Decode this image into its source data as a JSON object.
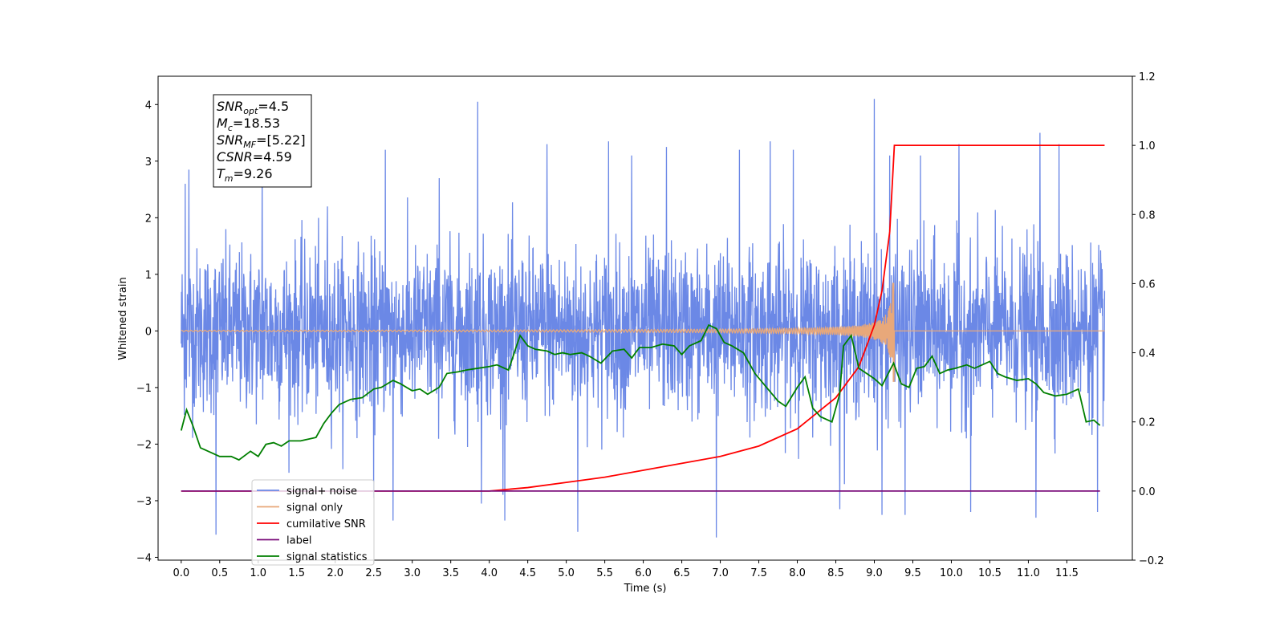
{
  "chart_data": {
    "type": "line",
    "xlabel": "Time (s)",
    "ylabel": "Whitened strain",
    "xlim": [
      -0.3,
      12.35
    ],
    "ylim": [
      -4.05,
      4.5
    ],
    "y2lim": [
      -0.2,
      1.2
    ],
    "x_ticks": [
      0.0,
      0.5,
      1.0,
      1.5,
      2.0,
      2.5,
      3.0,
      3.5,
      4.0,
      4.5,
      5.0,
      5.5,
      6.0,
      6.5,
      7.0,
      7.5,
      8.0,
      8.5,
      9.0,
      9.5,
      10.0,
      10.5,
      11.0,
      11.5
    ],
    "x_tick_labels": [
      "0.0",
      "0.5",
      "1.0",
      "1.5",
      "2.0",
      "2.5",
      "3.0",
      "3.5",
      "4.0",
      "4.5",
      "5.0",
      "5.5",
      "6.0",
      "6.5",
      "7.0",
      "7.5",
      "8.0",
      "8.5",
      "9.0",
      "9.5",
      "10.0",
      "10.5",
      "11.0",
      "11.5"
    ],
    "y_ticks": [
      -4,
      -3,
      -2,
      -1,
      0,
      1,
      2,
      3,
      4
    ],
    "y_tick_labels": [
      "−4",
      "−3",
      "−2",
      "−1",
      "0",
      "1",
      "2",
      "3",
      "4"
    ],
    "y2_ticks": [
      -0.2,
      0.0,
      0.2,
      0.4,
      0.6,
      0.8,
      1.0,
      1.2
    ],
    "y2_tick_labels": [
      "−0.2",
      "0.0",
      "0.2",
      "0.4",
      "0.6",
      "0.8",
      "1.0",
      "1.2"
    ],
    "grid": false,
    "legend_position": "bottom-left",
    "annotation": [
      {
        "main": "SNR",
        "sub": "opt",
        "rest": "=4.5"
      },
      {
        "main": "M",
        "sub": "c",
        "rest": "=18.53"
      },
      {
        "main": "SNR",
        "sub": "MF",
        "rest": "=[5.22]"
      },
      {
        "main": "CSNR",
        "sub": "",
        "rest": "=4.59"
      },
      {
        "main": "T",
        "sub": "m",
        "rest": "=9.26"
      }
    ],
    "series": [
      {
        "name": "signal+ noise",
        "color": "#6b88e6",
        "axis": "left",
        "envelope": {
          "x": [
            0.0,
            11.99
          ],
          "typical_range": [
            -2.0,
            2.0
          ],
          "max_peak": {
            "x": 9.0,
            "y": 4.1
          },
          "min_peak": {
            "x": 6.95,
            "y": -3.65
          }
        },
        "spikes": [
          {
            "x": 0.05,
            "y": 2.6
          },
          {
            "x": 0.1,
            "y": 2.85
          },
          {
            "x": 0.45,
            "y": -3.6
          },
          {
            "x": 1.05,
            "y": 2.9
          },
          {
            "x": 1.9,
            "y": 2.2
          },
          {
            "x": 2.5,
            "y": -2.95
          },
          {
            "x": 2.65,
            "y": 3.2
          },
          {
            "x": 2.75,
            "y": -3.35
          },
          {
            "x": 3.35,
            "y": 2.7
          },
          {
            "x": 3.85,
            "y": 4.05
          },
          {
            "x": 3.9,
            "y": -3.05
          },
          {
            "x": 4.2,
            "y": -3.35
          },
          {
            "x": 4.75,
            "y": 3.3
          },
          {
            "x": 5.15,
            "y": -3.55
          },
          {
            "x": 5.55,
            "y": 3.35
          },
          {
            "x": 5.85,
            "y": 3.1
          },
          {
            "x": 6.3,
            "y": 3.25
          },
          {
            "x": 6.95,
            "y": -3.65
          },
          {
            "x": 7.25,
            "y": 3.2
          },
          {
            "x": 7.65,
            "y": 3.35
          },
          {
            "x": 7.95,
            "y": 3.2
          },
          {
            "x": 8.55,
            "y": -3.15
          },
          {
            "x": 9.0,
            "y": 4.1
          },
          {
            "x": 9.1,
            "y": -3.25
          },
          {
            "x": 9.2,
            "y": 3.1
          },
          {
            "x": 9.4,
            "y": -3.25
          },
          {
            "x": 9.6,
            "y": 3.1
          },
          {
            "x": 10.1,
            "y": 3.3
          },
          {
            "x": 10.25,
            "y": -3.2
          },
          {
            "x": 11.1,
            "y": -3.3
          },
          {
            "x": 11.15,
            "y": 3.5
          },
          {
            "x": 11.4,
            "y": 3.3
          },
          {
            "x": 11.9,
            "y": -3.2
          }
        ]
      },
      {
        "name": "signal only",
        "color": "#e8a87a",
        "axis": "left",
        "chirp": {
          "t_start": 0.0,
          "t_merger": 9.26,
          "peak_amplitude": 0.85,
          "min_amplitude": -0.9,
          "end": 11.99
        }
      },
      {
        "name": "cumilative SNR",
        "color": "#ff0000",
        "axis": "right",
        "x": [
          0.0,
          4.0,
          4.5,
          5.0,
          5.5,
          6.0,
          6.5,
          7.0,
          7.5,
          8.0,
          8.5,
          8.8,
          9.0,
          9.1,
          9.2,
          9.26,
          9.27,
          11.99
        ],
        "values": [
          0.0,
          0.0,
          0.01,
          0.025,
          0.04,
          0.06,
          0.08,
          0.1,
          0.13,
          0.18,
          0.27,
          0.36,
          0.48,
          0.58,
          0.75,
          1.0,
          1.0,
          1.0
        ]
      },
      {
        "name": "label",
        "color": "#7b0f7b",
        "axis": "right",
        "x": [
          0.0,
          11.93
        ],
        "values": [
          0.0,
          0.0
        ]
      },
      {
        "name": "signal statistics",
        "color": "#007f00",
        "axis": "right",
        "x": [
          0.0,
          0.07,
          0.15,
          0.25,
          0.35,
          0.5,
          0.65,
          0.75,
          0.9,
          1.0,
          1.1,
          1.2,
          1.3,
          1.4,
          1.55,
          1.65,
          1.75,
          1.85,
          1.95,
          2.05,
          2.2,
          2.35,
          2.5,
          2.6,
          2.75,
          2.85,
          3.0,
          3.1,
          3.2,
          3.35,
          3.45,
          3.6,
          3.7,
          3.85,
          4.0,
          4.1,
          4.25,
          4.4,
          4.5,
          4.6,
          4.75,
          4.85,
          4.95,
          5.05,
          5.2,
          5.3,
          5.45,
          5.6,
          5.75,
          5.85,
          5.95,
          6.1,
          6.25,
          6.4,
          6.5,
          6.6,
          6.75,
          6.85,
          6.95,
          7.05,
          7.15,
          7.3,
          7.45,
          7.6,
          7.75,
          7.85,
          8.0,
          8.1,
          8.2,
          8.3,
          8.45,
          8.55,
          8.6,
          8.7,
          8.8,
          8.9,
          9.0,
          9.1,
          9.25,
          9.35,
          9.45,
          9.55,
          9.65,
          9.75,
          9.85,
          9.95,
          10.05,
          10.2,
          10.3,
          10.4,
          10.5,
          10.6,
          10.7,
          10.85,
          11.0,
          11.1,
          11.2,
          11.35,
          11.5,
          11.65,
          11.75,
          11.85,
          11.93
        ],
        "values": [
          0.175,
          0.235,
          0.19,
          0.125,
          0.115,
          0.1,
          0.1,
          0.09,
          0.115,
          0.1,
          0.135,
          0.14,
          0.13,
          0.145,
          0.145,
          0.15,
          0.155,
          0.195,
          0.225,
          0.25,
          0.265,
          0.27,
          0.295,
          0.3,
          0.32,
          0.31,
          0.29,
          0.295,
          0.28,
          0.3,
          0.34,
          0.345,
          0.35,
          0.355,
          0.36,
          0.365,
          0.35,
          0.45,
          0.42,
          0.41,
          0.405,
          0.395,
          0.4,
          0.395,
          0.4,
          0.39,
          0.37,
          0.405,
          0.41,
          0.385,
          0.415,
          0.415,
          0.425,
          0.42,
          0.395,
          0.42,
          0.435,
          0.48,
          0.47,
          0.43,
          0.42,
          0.4,
          0.34,
          0.3,
          0.26,
          0.245,
          0.3,
          0.33,
          0.24,
          0.215,
          0.2,
          0.28,
          0.42,
          0.45,
          0.355,
          0.34,
          0.325,
          0.305,
          0.37,
          0.31,
          0.3,
          0.355,
          0.36,
          0.39,
          0.34,
          0.35,
          0.355,
          0.365,
          0.355,
          0.365,
          0.375,
          0.34,
          0.33,
          0.32,
          0.325,
          0.31,
          0.285,
          0.275,
          0.28,
          0.295,
          0.2,
          0.205,
          0.19
        ]
      }
    ]
  }
}
